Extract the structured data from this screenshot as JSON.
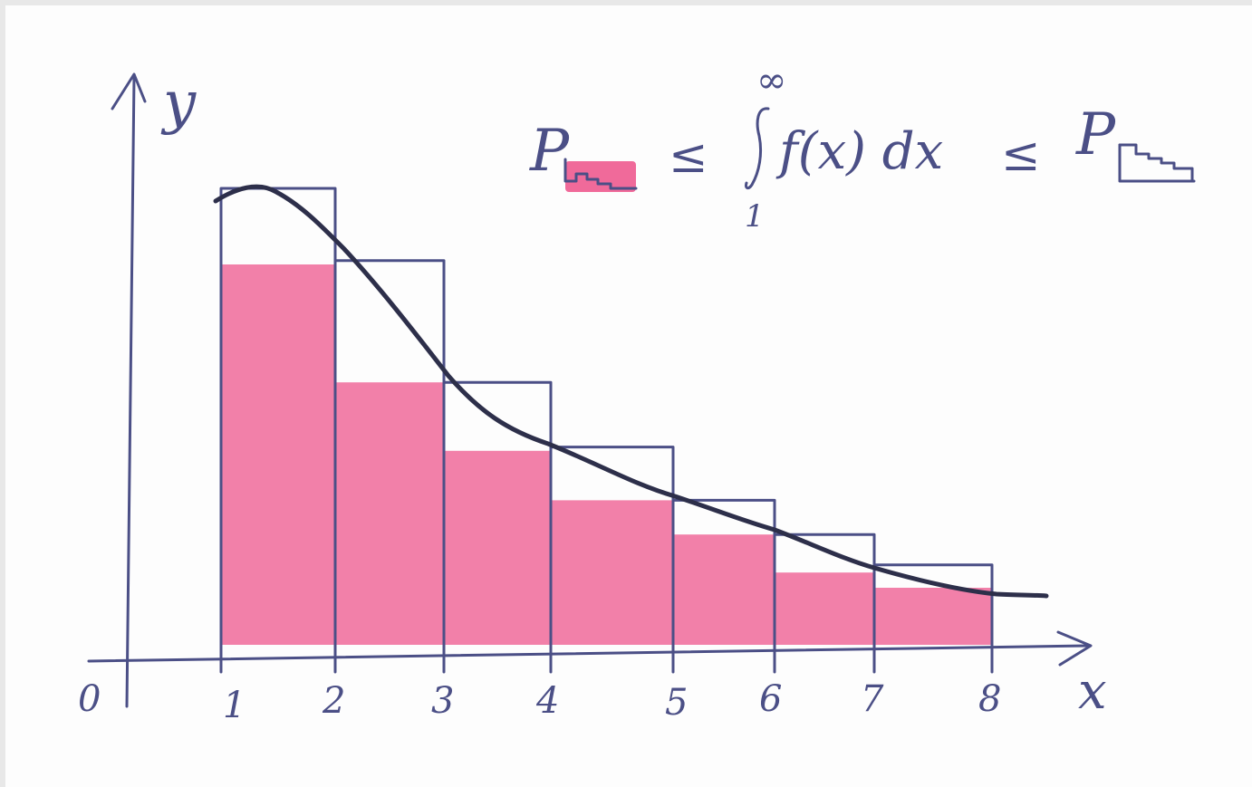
{
  "diagram": {
    "origin_label": "0",
    "y_axis_label": "y",
    "x_axis_label": "x",
    "x_ticks": [
      "1",
      "2",
      "3",
      "4",
      "5",
      "6",
      "7",
      "8"
    ],
    "formula": {
      "left": "P",
      "leq1": "≤",
      "integral_upper": "∞",
      "integrand": "f(x) dx",
      "integral_lower": "1",
      "leq2": "≤",
      "right": "P"
    },
    "colors": {
      "ink": "#4b4f86",
      "curve": "#2d2f4a",
      "fill": "#f06a9a",
      "paper": "#fdfdfd"
    },
    "lower_bar_heights": [
      1.0,
      0.69,
      0.51,
      0.38,
      0.29,
      0.19,
      0.15
    ],
    "upper_bar_heights": [
      1.2,
      1.01,
      0.69,
      0.52,
      0.38,
      0.29,
      0.21
    ]
  }
}
